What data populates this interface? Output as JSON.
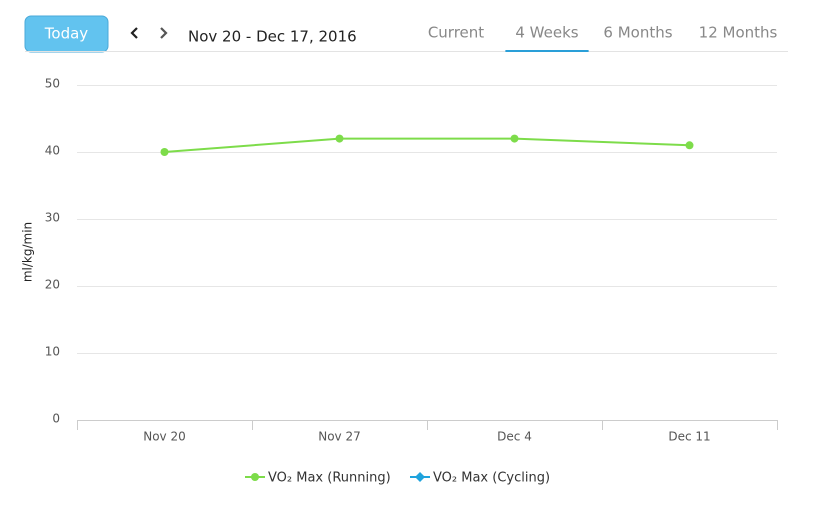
{
  "header": {
    "today": "Today",
    "date_range": "Nov 20 - Dec 17, 2016",
    "tabs": [
      "Current",
      "4 Weeks",
      "6 Months",
      "12 Months"
    ],
    "active_tab": 1
  },
  "chart_data": {
    "type": "line",
    "y_label": "ml/kg/min",
    "categories": [
      "Nov 20",
      "Nov 27",
      "Dec 4",
      "Dec 11"
    ],
    "series": [
      {
        "name": "VO₂ Max (Running)",
        "color": "#7ddc4a",
        "values": [
          40,
          42,
          42,
          41
        ]
      },
      {
        "name": "VO₂ Max (Cycling)",
        "color": "#1fa3dd",
        "values": [
          null,
          null,
          null,
          null
        ]
      }
    ],
    "ylim": [
      0,
      50
    ],
    "yticks": [
      0,
      10,
      20,
      30,
      40,
      50
    ],
    "grid": true
  }
}
